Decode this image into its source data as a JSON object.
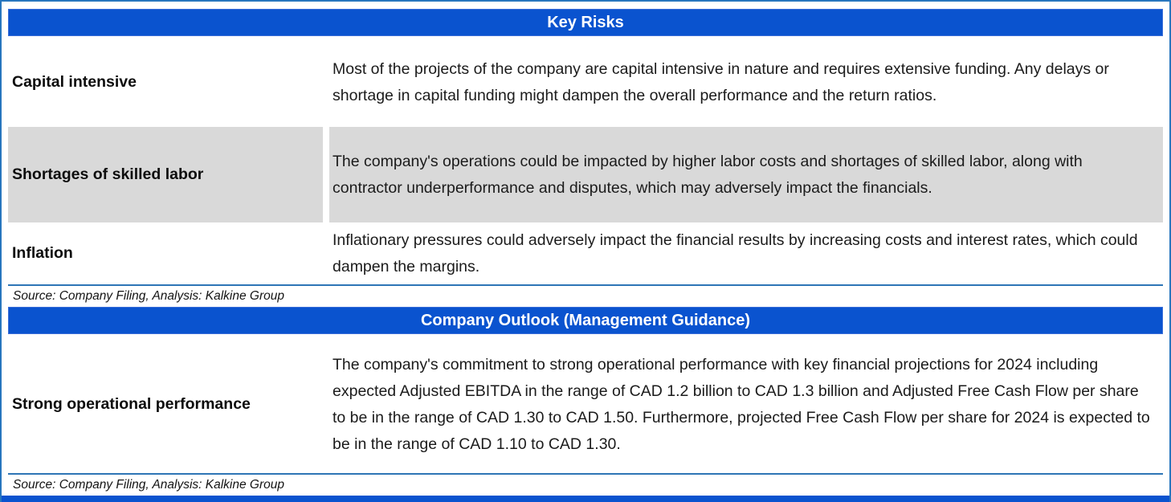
{
  "colors": {
    "header_bg": "#0A53CF",
    "outer_border": "#2776BE",
    "separator_line": "#2E75B6",
    "shaded_row_bg": "#D9D9D9",
    "header_text": "#FFFFFF"
  },
  "key_risks": {
    "title": "Key Risks",
    "rows": [
      {
        "label": "Capital intensive",
        "text": "Most of the projects of the company are capital intensive in nature and requires extensive funding. Any delays or shortage in capital funding might dampen the overall performance and the return ratios."
      },
      {
        "label": "Shortages of skilled labor",
        "text": "The company's operations could be impacted by higher labor costs and shortages of skilled labor, along with contractor underperformance and disputes, which may adversely impact the financials."
      },
      {
        "label": "Inflation",
        "text": "Inflationary pressures could adversely impact the financial results by increasing costs and interest rates, which could dampen the margins."
      }
    ],
    "source": "Source: Company Filing, Analysis: Kalkine Group"
  },
  "company_outlook": {
    "title": "Company Outlook (Management Guidance)",
    "rows": [
      {
        "label": "Strong operational performance",
        "text": "The company's commitment to strong operational performance with key financial projections for 2024 including expected Adjusted EBITDA in the range of CAD 1.2 billion to CAD 1.3 billion and Adjusted Free Cash Flow per share to be in the range of CAD 1.30 to CAD 1.50. Furthermore, projected Free Cash Flow per share for 2024 is expected to be in the range of CAD 1.10 to CAD 1.30."
      }
    ],
    "source": "Source: Company Filing, Analysis: Kalkine Group"
  }
}
